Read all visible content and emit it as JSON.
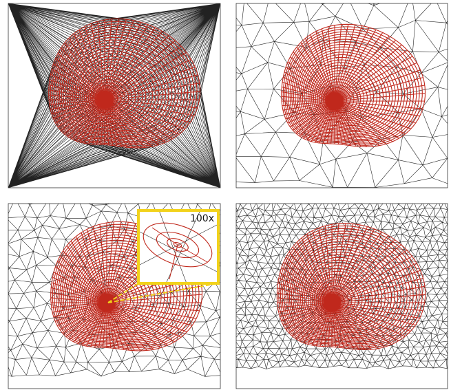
{
  "inset": {
    "label": "100x"
  }
}
